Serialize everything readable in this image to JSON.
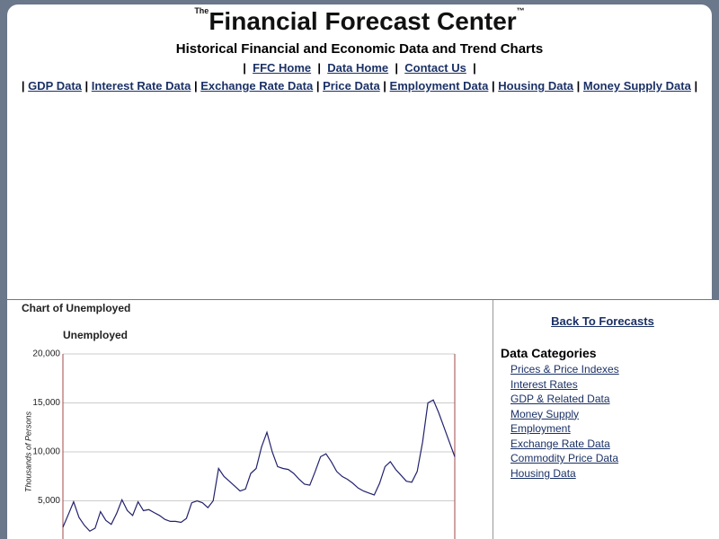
{
  "header": {
    "the": "The",
    "title": "Financial Forecast Center",
    "tm": "™",
    "subtitle": "Historical Financial and Economic Data and Trend Charts"
  },
  "nav_top": [
    "FFC Home",
    "Data Home",
    "Contact Us"
  ],
  "nav_data": [
    "GDP Data",
    "Interest Rate Data",
    "Exchange Rate Data",
    "Price Data",
    "Employment Data",
    "Housing Data",
    "Money Supply Data"
  ],
  "chart_data": {
    "type": "line",
    "title": "Chart of Unemployed",
    "subtitle": "Unemployed",
    "y_label": "Thousands of Persons",
    "color": "#22226e",
    "values": [
      2300,
      3600,
      4900,
      3300,
      2500,
      1900,
      2200,
      3900,
      3000,
      2600,
      3700,
      5100,
      4000,
      3500,
      4900,
      4000,
      4100,
      3800,
      3500,
      3100,
      2900,
      2900,
      2800,
      3200,
      4800,
      5000,
      4800,
      4300,
      5000,
      8300,
      7500,
      7000,
      6500,
      6000,
      6200,
      7800,
      8300,
      10500,
      12000,
      10000,
      8500,
      8300,
      8200,
      7800,
      7200,
      6700,
      6600,
      8000,
      9500,
      9800,
      9000,
      8000,
      7500,
      7200,
      6800,
      6300,
      6000,
      5800,
      5600,
      6800,
      8500,
      9000,
      8200,
      7600,
      7000,
      6900,
      8000,
      11000,
      15000,
      15300,
      14000,
      12500,
      11000,
      9500
    ],
    "ylim": [
      0,
      20000
    ],
    "yticks": [
      {
        "value": 5000,
        "label": "5,000"
      },
      {
        "value": 10000,
        "label": "10,000"
      },
      {
        "value": 15000,
        "label": "15,000"
      },
      {
        "value": 20000,
        "label": "20,000"
      }
    ],
    "grid": true
  },
  "sidebar": {
    "back": "Back To Forecasts",
    "heading": "Data Categories",
    "links": [
      "Prices & Price Indexes",
      "Interest Rates",
      "GDP & Related Data",
      "Money Supply",
      "Employment",
      "Exchange Rate Data",
      "Commodity Price Data",
      "Housing Data"
    ]
  }
}
